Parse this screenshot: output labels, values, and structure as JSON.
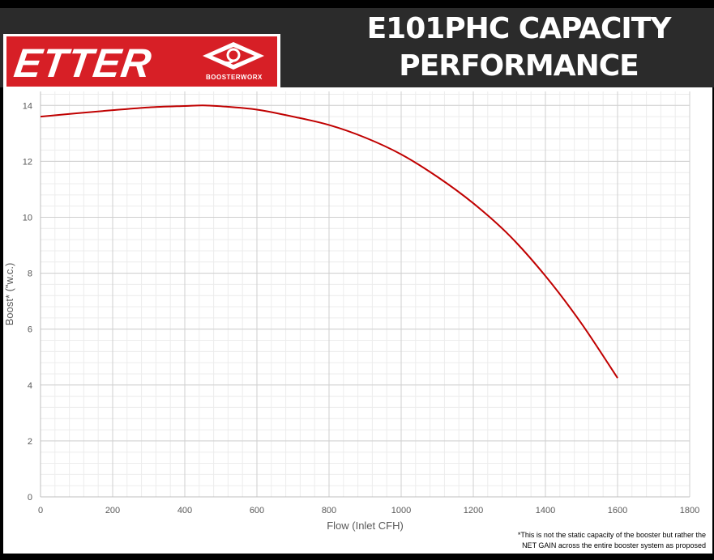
{
  "header": {
    "title_line1": "E101PHC CAPACITY",
    "title_line2": "PERFORMANCE"
  },
  "logo": {
    "wordmark": "ETTER",
    "subtext": "BOOSTERWORX",
    "brand_color": "#d71f26"
  },
  "chart_data": {
    "type": "line",
    "title": "",
    "xlabel": "Flow (Inlet CFH)",
    "ylabel": "Boost* (\"w.c.)",
    "xlim": [
      0,
      1800
    ],
    "ylim": [
      0,
      14.5
    ],
    "x_ticks": [
      0,
      200,
      400,
      600,
      800,
      1000,
      1200,
      1400,
      1600,
      1800
    ],
    "y_ticks": [
      0,
      2,
      4,
      6,
      8,
      10,
      12,
      14
    ],
    "grid": true,
    "legend": "none",
    "series": [
      {
        "color": "#c00000",
        "x": [
          0,
          100,
          200,
          300,
          400,
          450,
          500,
          600,
          700,
          800,
          900,
          1000,
          1100,
          1200,
          1300,
          1400,
          1500,
          1600
        ],
        "y": [
          13.6,
          13.72,
          13.83,
          13.93,
          13.98,
          14.0,
          13.97,
          13.85,
          13.6,
          13.3,
          12.85,
          12.25,
          11.45,
          10.5,
          9.35,
          7.9,
          6.2,
          4.25
        ]
      }
    ]
  },
  "footnote": {
    "line1": "*This is not the static capacity of the booster but rather the",
    "line2": "NET GAIN across the entire booster system as proposed"
  }
}
